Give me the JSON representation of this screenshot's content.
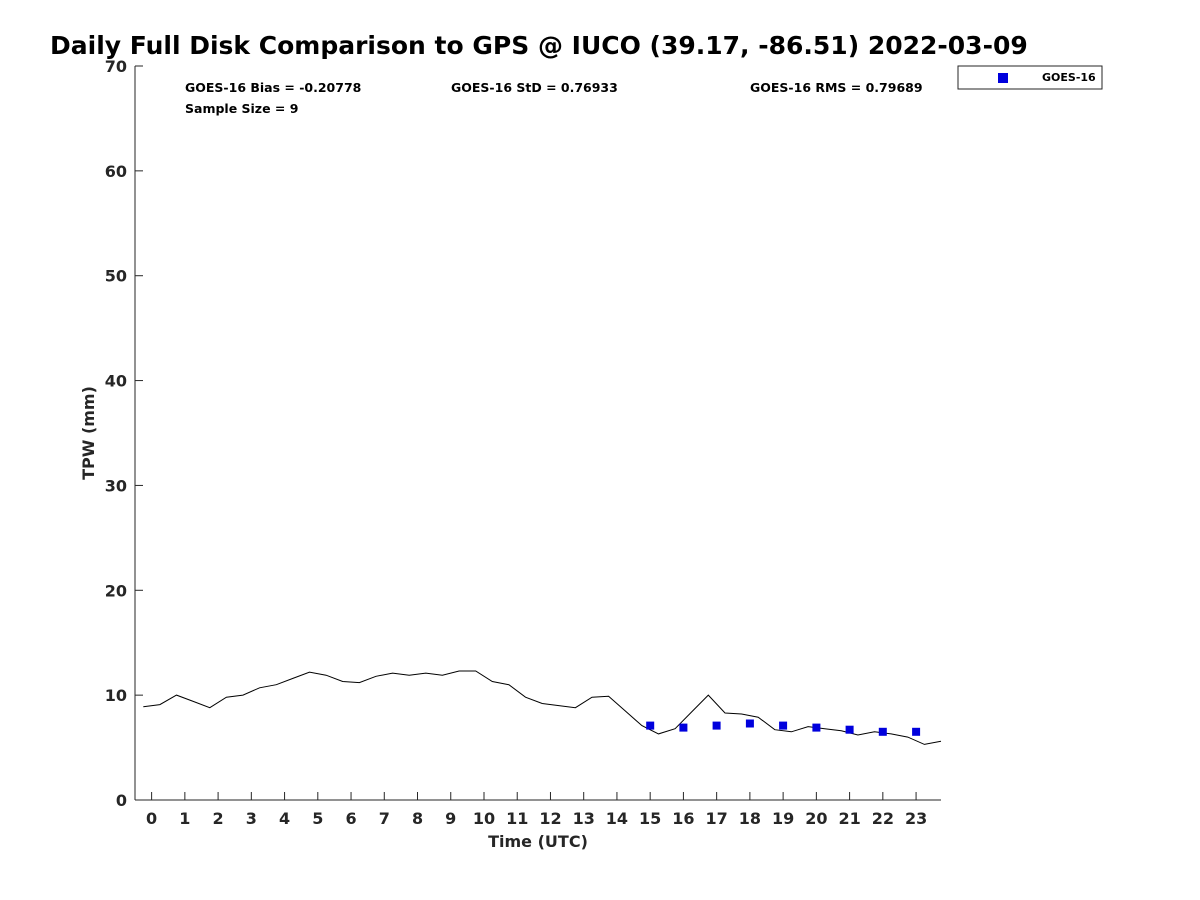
{
  "chart_data": {
    "type": "line",
    "title": "Daily Full Disk Comparison to GPS @ IUCO (39.17, -86.51) 2022-03-09",
    "xlabel": "Time (UTC)",
    "ylabel": "TPW (mm)",
    "xlim": [
      -0.5,
      23.75
    ],
    "ylim": [
      0,
      70
    ],
    "x_ticks": [
      "0",
      "1",
      "2",
      "3",
      "4",
      "5",
      "6",
      "7",
      "8",
      "9",
      "10",
      "11",
      "12",
      "13",
      "14",
      "15",
      "16",
      "17",
      "18",
      "19",
      "20",
      "21",
      "22",
      "23"
    ],
    "y_ticks": [
      "0",
      "10",
      "20",
      "30",
      "40",
      "50",
      "60",
      "70"
    ],
    "grid": false,
    "legend_position": "top-right (outside)",
    "stats": {
      "bias": "GOES-16 Bias = -0.20778",
      "std": "GOES-16 StD = 0.76933",
      "rms": "GOES-16 RMS = 0.79689",
      "sample": "Sample Size = 9"
    },
    "series": [
      {
        "color": "#000000",
        "style": "line",
        "x": [
          -0.25,
          0.25,
          0.75,
          1.25,
          1.75,
          2.25,
          2.75,
          3.25,
          3.75,
          4.25,
          4.75,
          5.25,
          5.75,
          6.25,
          6.75,
          7.25,
          7.75,
          8.25,
          8.75,
          9.25,
          9.75,
          10.25,
          10.75,
          11.25,
          11.75,
          12.25,
          12.75,
          13.25,
          13.75,
          14.25,
          14.75,
          15.25,
          15.75,
          16.25,
          16.75,
          17.25,
          17.75,
          18.25,
          18.75,
          19.25,
          19.75,
          20.25,
          20.75,
          21.25,
          21.75,
          22.25,
          22.75,
          23.25,
          23.75
        ],
        "values": [
          8.9,
          9.1,
          10.0,
          9.4,
          8.8,
          9.8,
          10.0,
          10.7,
          11.0,
          11.6,
          12.2,
          11.9,
          11.3,
          11.2,
          11.8,
          12.1,
          11.9,
          12.1,
          11.9,
          12.3,
          12.3,
          11.3,
          11.0,
          9.8,
          9.2,
          9.0,
          8.8,
          9.8,
          9.9,
          8.5,
          7.1,
          6.3,
          6.8,
          8.4,
          10.0,
          8.3,
          8.2,
          7.9,
          6.7,
          6.5,
          7.0,
          6.8,
          6.6,
          6.2,
          6.5,
          6.3,
          6.0,
          5.3,
          5.6
        ]
      },
      {
        "name": "GOES-16",
        "color": "#0000dd",
        "style": "markers",
        "marker": "square",
        "x": [
          15,
          16,
          17,
          18,
          19,
          20,
          21,
          22,
          23
        ],
        "values": [
          7.1,
          6.9,
          7.1,
          7.3,
          7.1,
          6.9,
          6.7,
          6.5,
          6.5
        ]
      }
    ]
  }
}
